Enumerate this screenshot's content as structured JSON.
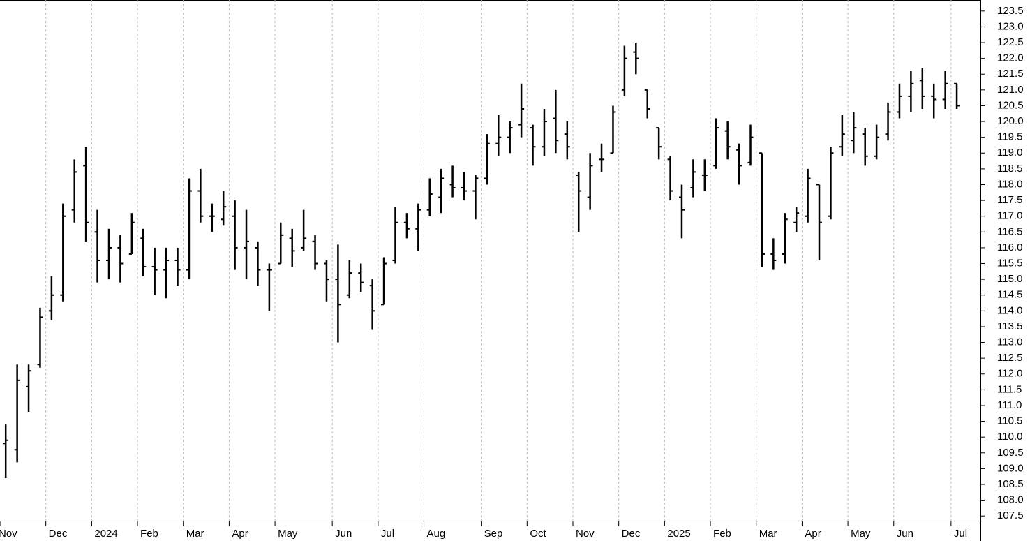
{
  "chart_data": {
    "type": "ohlc",
    "color": "#000000",
    "grid": true,
    "categories": [
      "Nov",
      null,
      null,
      null,
      "Dec",
      null,
      null,
      null,
      "2024",
      null,
      null,
      null,
      "Feb",
      null,
      null,
      null,
      "Mar",
      null,
      null,
      null,
      "Apr",
      null,
      null,
      null,
      "May",
      null,
      null,
      null,
      null,
      "Jun",
      null,
      null,
      null,
      "Jul",
      null,
      null,
      null,
      "Aug",
      null,
      null,
      null,
      null,
      "Sep",
      null,
      null,
      null,
      "Oct",
      null,
      null,
      null,
      "Nov",
      null,
      null,
      null,
      "Dec",
      null,
      null,
      null,
      "2025",
      null,
      null,
      null,
      "Feb",
      null,
      null,
      null,
      "Mar",
      null,
      null,
      null,
      "Apr",
      null,
      null,
      null,
      "May",
      null,
      null,
      null,
      "Jun",
      null,
      null,
      null,
      null,
      "Jul"
    ],
    "open": [
      109.8,
      109.6,
      111.6,
      112.3,
      114.0,
      114.5,
      117.2,
      118.6,
      116.5,
      115.6,
      116.0,
      115.8,
      116.3,
      115.4,
      115.3,
      115.6,
      115.3,
      117.8,
      117.0,
      116.9,
      117.0,
      116.0,
      116.0,
      115.3,
      115.5,
      116.3,
      116.0,
      116.2,
      115.5,
      115.0,
      114.5,
      115.2,
      114.8,
      114.2,
      115.6,
      116.8,
      116.6,
      117.2,
      117.6,
      118.0,
      117.9,
      117.8,
      118.2,
      119.3,
      119.5,
      119.9,
      119.8,
      119.2,
      120.1,
      119.6,
      118.3,
      117.6,
      118.8,
      119.0,
      121.0,
      122.2,
      121.0,
      119.8,
      118.8,
      117.6,
      117.9,
      118.3,
      118.6,
      119.7,
      119.1,
      118.7,
      119.0,
      115.8,
      115.8,
      116.8,
      117.0,
      118.0,
      117.0,
      119.2,
      119.4,
      119.6,
      118.9,
      119.6,
      120.3,
      120.8,
      121.3,
      120.8,
      120.7,
      121.2
    ],
    "high": [
      110.4,
      112.3,
      112.3,
      114.1,
      115.1,
      117.4,
      118.8,
      119.2,
      117.2,
      116.6,
      116.4,
      117.1,
      116.6,
      116.0,
      116.0,
      116.0,
      118.2,
      118.5,
      117.4,
      117.8,
      117.5,
      117.2,
      116.2,
      115.5,
      116.8,
      116.6,
      117.2,
      116.4,
      115.6,
      116.1,
      115.6,
      115.5,
      115.0,
      115.7,
      117.3,
      117.1,
      117.4,
      118.2,
      118.5,
      118.6,
      118.4,
      118.3,
      119.6,
      120.2,
      120.0,
      121.2,
      119.9,
      120.4,
      121.0,
      120.0,
      118.4,
      119.0,
      119.3,
      120.5,
      122.4,
      122.5,
      121.0,
      119.8,
      118.9,
      118.0,
      118.8,
      118.8,
      120.1,
      120.0,
      119.3,
      119.9,
      119.0,
      116.3,
      117.1,
      117.3,
      118.5,
      118.0,
      119.2,
      120.2,
      120.3,
      119.8,
      119.9,
      120.6,
      121.2,
      121.6,
      121.7,
      121.2,
      121.6,
      121.2
    ],
    "low": [
      108.7,
      109.2,
      110.8,
      112.2,
      113.7,
      114.3,
      116.8,
      116.2,
      114.9,
      115.0,
      114.9,
      115.8,
      115.1,
      114.5,
      114.4,
      114.8,
      115.0,
      116.8,
      116.5,
      116.7,
      115.3,
      115.0,
      114.8,
      114.0,
      115.5,
      115.4,
      115.9,
      115.3,
      114.3,
      113.0,
      114.4,
      114.6,
      113.4,
      114.2,
      115.5,
      116.3,
      115.9,
      117.0,
      117.1,
      117.6,
      117.5,
      116.9,
      118.0,
      118.9,
      119.0,
      119.5,
      118.6,
      118.9,
      119.0,
      118.8,
      116.5,
      117.2,
      118.4,
      119.0,
      120.8,
      121.5,
      120.1,
      118.8,
      117.5,
      116.3,
      117.6,
      117.8,
      118.5,
      118.8,
      118.0,
      118.6,
      115.4,
      115.3,
      115.5,
      116.5,
      116.8,
      115.6,
      116.9,
      118.9,
      119.0,
      118.6,
      118.8,
      119.4,
      120.1,
      120.3,
      120.4,
      120.1,
      120.4,
      120.4
    ],
    "close": [
      109.9,
      111.8,
      112.1,
      113.8,
      114.5,
      117.0,
      118.4,
      116.8,
      115.6,
      116.0,
      115.5,
      116.8,
      115.4,
      115.3,
      115.6,
      115.3,
      117.8,
      117.0,
      117.0,
      117.3,
      116.0,
      116.2,
      115.3,
      115.3,
      116.4,
      115.9,
      116.3,
      115.5,
      115.0,
      114.2,
      115.2,
      114.9,
      114.0,
      115.5,
      116.8,
      116.6,
      117.2,
      117.7,
      118.2,
      117.9,
      117.8,
      118.2,
      119.3,
      119.5,
      119.8,
      120.4,
      119.2,
      120.0,
      119.4,
      119.2,
      117.8,
      118.6,
      118.8,
      120.3,
      122.0,
      122.0,
      120.4,
      119.2,
      117.8,
      117.2,
      118.4,
      118.3,
      119.8,
      119.2,
      118.6,
      119.5,
      115.8,
      115.6,
      116.9,
      117.1,
      118.2,
      116.8,
      119.0,
      119.6,
      119.8,
      118.9,
      119.5,
      120.3,
      120.8,
      121.2,
      120.8,
      120.7,
      121.2,
      120.5
    ],
    "ylim": [
      107.35,
      123.85
    ],
    "yticks": [
      107.5,
      {
        "value": 108,
        "label": "108.0"
      },
      108.5,
      {
        "value": 109,
        "label": "109.0"
      },
      109.5,
      {
        "value": 110,
        "label": "110.0"
      },
      110.5,
      {
        "value": 111,
        "label": "111.0"
      },
      111.5,
      {
        "value": 112,
        "label": "112.0"
      },
      112.5,
      {
        "value": 113,
        "label": "113.0"
      },
      113.5,
      {
        "value": 114,
        "label": "114.0"
      },
      114.5,
      {
        "value": 115,
        "label": "115.0"
      },
      115.5,
      {
        "value": 116,
        "label": "116.0"
      },
      116.5,
      {
        "value": 117,
        "label": "117.0"
      },
      117.5,
      {
        "value": 118,
        "label": "118.0"
      },
      118.5,
      {
        "value": 119,
        "label": "119.0"
      },
      119.5,
      {
        "value": 120,
        "label": "120.0"
      },
      120.5,
      {
        "value": 121,
        "label": "121.0"
      },
      121.5,
      {
        "value": 122,
        "label": "122.0"
      },
      122.5,
      {
        "value": 123,
        "label": "123.0"
      },
      123.5
    ]
  }
}
